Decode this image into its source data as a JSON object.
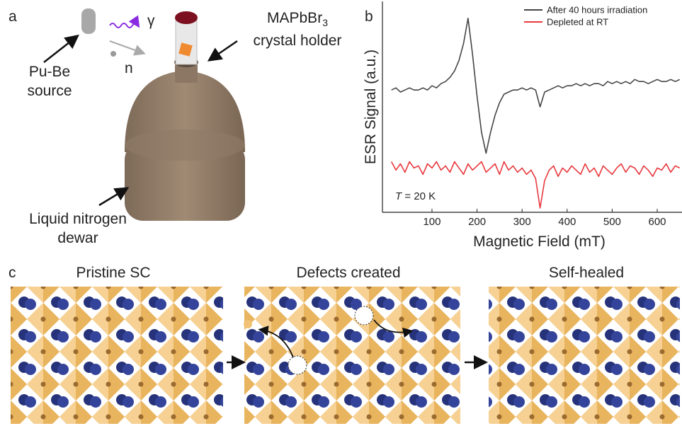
{
  "panel_labels": [
    "a",
    "b",
    "c"
  ],
  "panel_a": {
    "source_label": [
      "Pu-Be",
      "source"
    ],
    "gamma_label": "γ",
    "neutron_label": "n",
    "holder_formula": {
      "base": "MAPbBr",
      "subscript": "3"
    },
    "holder_label": "crystal holder",
    "dewar_label": [
      "Liquid nitrogen",
      "dewar"
    ]
  },
  "chart_data": {
    "type": "line",
    "xlabel": "Magnetic Field (mT)",
    "ylabel": "ESR Signal (a.u.)",
    "xlim": [
      -10,
      655
    ],
    "xticks": [
      100,
      200,
      300,
      400,
      500,
      600
    ],
    "ylim": [
      0,
      100
    ],
    "annotation": {
      "symbol": "T",
      "text": " = 20 K"
    },
    "legend": "upper right",
    "x": [
      10,
      20,
      30,
      40,
      50,
      60,
      70,
      80,
      90,
      100,
      110,
      120,
      130,
      140,
      150,
      160,
      170,
      180,
      190,
      200,
      210,
      220,
      230,
      240,
      250,
      260,
      270,
      280,
      290,
      300,
      310,
      320,
      330,
      340,
      350,
      360,
      370,
      380,
      390,
      400,
      410,
      420,
      430,
      440,
      450,
      460,
      470,
      480,
      490,
      500,
      510,
      520,
      530,
      540,
      550,
      560,
      570,
      580,
      590,
      600,
      610,
      620,
      630,
      640,
      650
    ],
    "series": [
      {
        "name": "After 40 hours irradiation",
        "color": "#454545",
        "values": [
          58,
          59,
          57,
          58,
          59,
          58,
          58,
          59,
          58,
          60,
          59,
          61,
          62,
          64,
          67,
          72,
          80,
          92,
          75,
          55,
          38,
          28,
          38,
          46,
          52,
          56,
          57,
          58,
          58,
          59,
          58,
          59,
          58,
          50,
          57,
          58,
          59,
          60,
          59,
          60,
          60,
          61,
          60,
          61,
          60,
          61,
          61,
          60,
          62,
          61,
          62,
          61,
          62,
          61,
          63,
          62,
          62,
          61,
          62,
          63,
          62,
          62,
          63,
          62,
          63
        ]
      },
      {
        "name": "Depleted at RT",
        "color": "#e8383d",
        "values": [
          24,
          20,
          23,
          19,
          24,
          21,
          22,
          18,
          23,
          21,
          24,
          20,
          22,
          19,
          24,
          21,
          18,
          23,
          20,
          22,
          24,
          19,
          21,
          23,
          18,
          24,
          20,
          22,
          19,
          21,
          18,
          20,
          16,
          2,
          15,
          20,
          22,
          17,
          21,
          19,
          22,
          20,
          18,
          23,
          19,
          21,
          17,
          22,
          20,
          18,
          21,
          23,
          19,
          22,
          21,
          18,
          22,
          20,
          17,
          21,
          20,
          23,
          19,
          22,
          21
        ]
      }
    ]
  },
  "panel_c": {
    "titles": [
      "Pristine SC",
      "Defects created",
      "Self-healed"
    ]
  }
}
